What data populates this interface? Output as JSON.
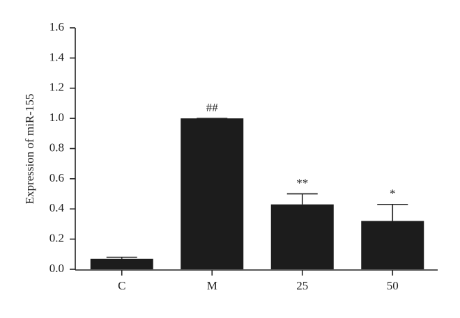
{
  "chart_data": {
    "type": "bar",
    "y_label": "Expression of miR-155",
    "categories": [
      "C",
      "M",
      "25",
      "50"
    ],
    "values": [
      0.07,
      1.0,
      0.43,
      0.32
    ],
    "errors": [
      0.01,
      0.0,
      0.07,
      0.11
    ],
    "annotations": [
      null,
      "##",
      "**",
      "*"
    ],
    "color": "#1c1c1c",
    "ylim": [
      0,
      1.6
    ],
    "yticks": [
      {
        "value": 0,
        "label": "0.0"
      },
      0.2,
      0.4,
      0.6,
      0.8,
      {
        "value": 1,
        "label": "1.0"
      },
      1.2,
      1.4,
      1.6
    ],
    "grid": false
  }
}
